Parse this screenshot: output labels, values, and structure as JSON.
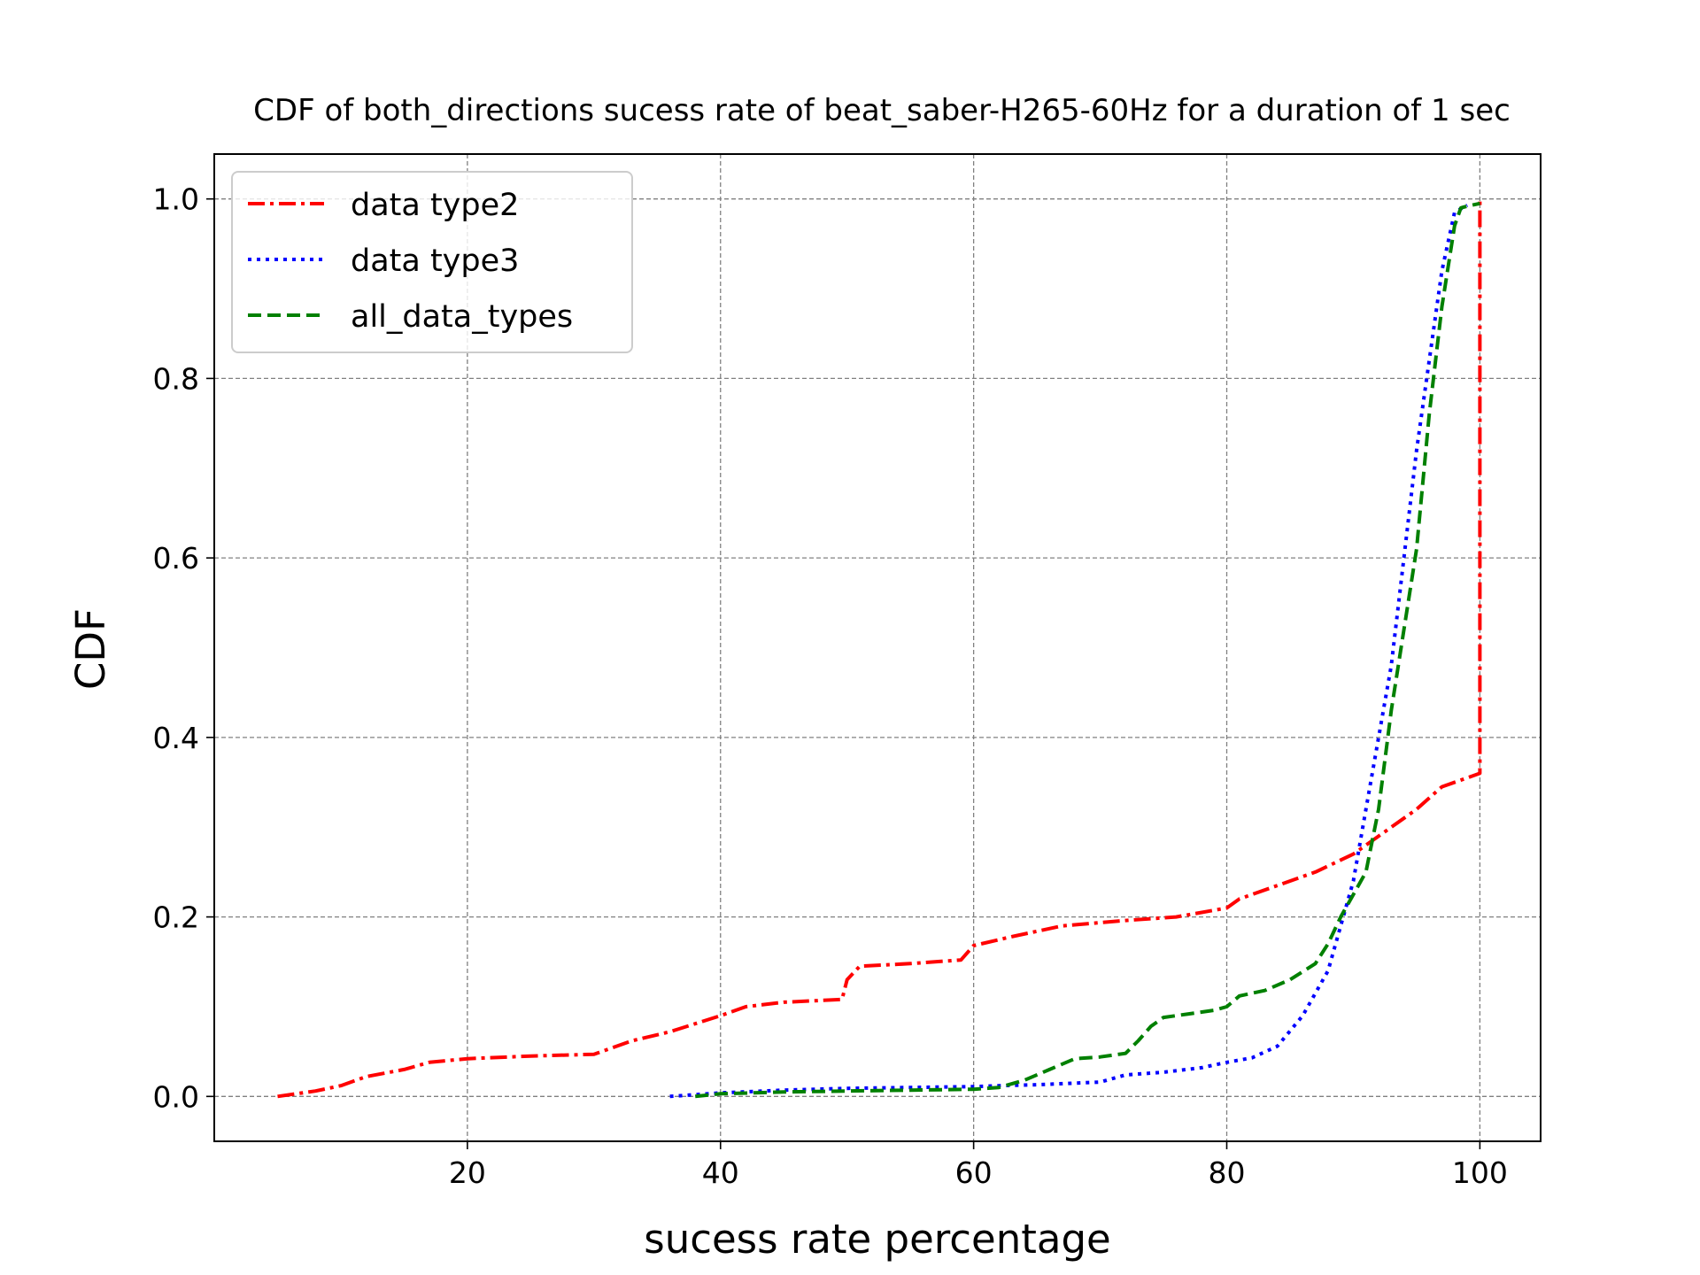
{
  "chart_data": {
    "type": "line",
    "title": "CDF of both_directions sucess rate of beat_saber-H265-60Hz for a duration of 1 sec",
    "xlabel": "sucess rate percentage",
    "ylabel": "CDF",
    "xlim": [
      0,
      104.8
    ],
    "ylim": [
      -0.05,
      1.05
    ],
    "xticks": [
      20,
      40,
      60,
      80,
      100
    ],
    "xtick_labels": [
      "20",
      "40",
      "60",
      "80",
      "100"
    ],
    "yticks": [
      0.0,
      0.2,
      0.4,
      0.6,
      0.8,
      1.0
    ],
    "ytick_labels": [
      "0.0",
      "0.2",
      "0.4",
      "0.6",
      "0.8",
      "1.0"
    ],
    "grid": true,
    "legend_position": "top-left",
    "series": [
      {
        "name": "data type2",
        "color": "#ff0000",
        "linestyle": "dashdot",
        "points": [
          [
            5,
            0
          ],
          [
            8,
            0.006
          ],
          [
            10,
            0.012
          ],
          [
            12,
            0.022
          ],
          [
            15,
            0.03
          ],
          [
            17,
            0.038
          ],
          [
            20,
            0.042
          ],
          [
            25,
            0.045
          ],
          [
            30,
            0.047
          ],
          [
            33,
            0.062
          ],
          [
            36,
            0.072
          ],
          [
            40,
            0.09
          ],
          [
            42,
            0.1
          ],
          [
            45,
            0.105
          ],
          [
            49.6,
            0.108
          ],
          [
            50,
            0.13
          ],
          [
            51,
            0.145
          ],
          [
            55,
            0.148
          ],
          [
            59,
            0.152
          ],
          [
            60,
            0.168
          ],
          [
            63,
            0.178
          ],
          [
            67,
            0.19
          ],
          [
            72,
            0.196
          ],
          [
            76,
            0.2
          ],
          [
            80,
            0.21
          ],
          [
            81,
            0.22
          ],
          [
            84,
            0.235
          ],
          [
            87,
            0.25
          ],
          [
            90,
            0.27
          ],
          [
            92,
            0.29
          ],
          [
            95,
            0.32
          ],
          [
            97,
            0.345
          ],
          [
            99,
            0.355
          ],
          [
            100,
            0.36
          ],
          [
            100,
            1.0
          ]
        ]
      },
      {
        "name": "data type3",
        "color": "#0000ff",
        "linestyle": "dotted",
        "points": [
          [
            36,
            0
          ],
          [
            38,
            0.002
          ],
          [
            40,
            0.004
          ],
          [
            45,
            0.007
          ],
          [
            50,
            0.009
          ],
          [
            55,
            0.01
          ],
          [
            60,
            0.011
          ],
          [
            62,
            0.012
          ],
          [
            65,
            0.013
          ],
          [
            70,
            0.016
          ],
          [
            72,
            0.024
          ],
          [
            75,
            0.027
          ],
          [
            78,
            0.032
          ],
          [
            80,
            0.038
          ],
          [
            82,
            0.043
          ],
          [
            84,
            0.056
          ],
          [
            86,
            0.09
          ],
          [
            88,
            0.14
          ],
          [
            89,
            0.19
          ],
          [
            90,
            0.24
          ],
          [
            91,
            0.32
          ],
          [
            92,
            0.4
          ],
          [
            93,
            0.48
          ],
          [
            94,
            0.6
          ],
          [
            95,
            0.72
          ],
          [
            96,
            0.82
          ],
          [
            97,
            0.92
          ],
          [
            98,
            0.985
          ],
          [
            99,
            0.993
          ]
        ]
      },
      {
        "name": "all_data_types",
        "color": "#008000",
        "linestyle": "dashed",
        "points": [
          [
            38,
            0
          ],
          [
            40,
            0.003
          ],
          [
            45,
            0.005
          ],
          [
            50,
            0.006
          ],
          [
            55,
            0.007
          ],
          [
            60,
            0.008
          ],
          [
            62,
            0.01
          ],
          [
            64,
            0.018
          ],
          [
            66,
            0.03
          ],
          [
            68,
            0.042
          ],
          [
            70,
            0.044
          ],
          [
            72,
            0.048
          ],
          [
            73,
            0.062
          ],
          [
            74,
            0.078
          ],
          [
            75,
            0.088
          ],
          [
            77,
            0.092
          ],
          [
            79,
            0.096
          ],
          [
            80,
            0.1
          ],
          [
            81,
            0.112
          ],
          [
            83,
            0.118
          ],
          [
            85,
            0.13
          ],
          [
            87,
            0.148
          ],
          [
            88,
            0.17
          ],
          [
            89,
            0.2
          ],
          [
            90,
            0.225
          ],
          [
            91,
            0.25
          ],
          [
            92,
            0.32
          ],
          [
            93,
            0.43
          ],
          [
            94,
            0.52
          ],
          [
            95,
            0.61
          ],
          [
            96,
            0.76
          ],
          [
            97,
            0.88
          ],
          [
            98,
            0.97
          ],
          [
            98.5,
            0.99
          ],
          [
            99,
            0.992
          ],
          [
            100,
            0.995
          ]
        ]
      }
    ]
  }
}
